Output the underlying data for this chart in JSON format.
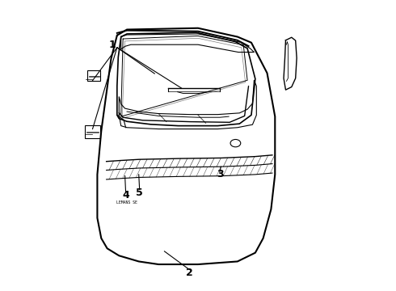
{
  "background_color": "#ffffff",
  "line_color": "#000000",
  "figure_width": 4.9,
  "figure_height": 3.6,
  "dpi": 100,
  "label_fontsize": 9
}
